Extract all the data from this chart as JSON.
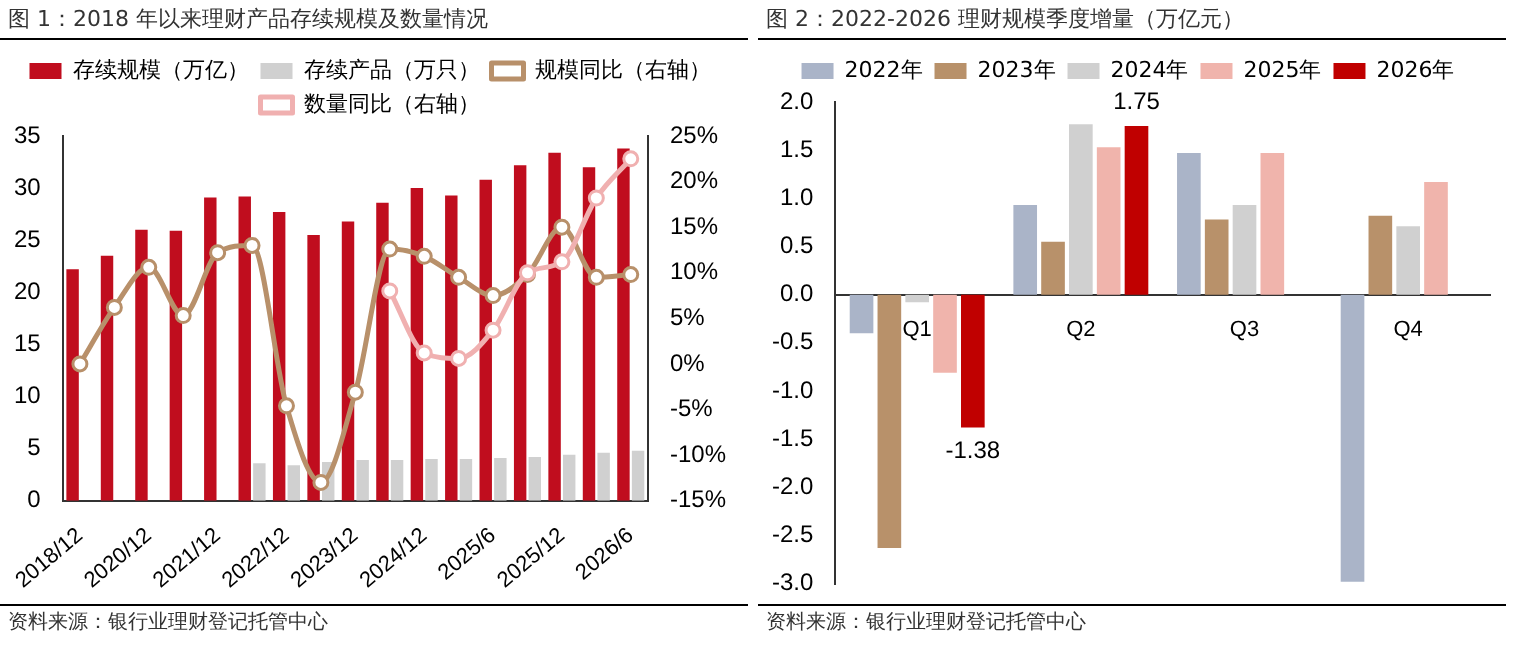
{
  "chart_data": [
    {
      "type": "bar",
      "title": "图 1：2018 年以来理财产品存续规模及数量情况",
      "categories": [
        "2018/12",
        null,
        "2020/12",
        null,
        "2021/12",
        null,
        "2022/12",
        null,
        "2023/12",
        null,
        "2024/12",
        null,
        "2025/6",
        null,
        "2025/12",
        null,
        "2026/6"
      ],
      "series": [
        {
          "name": "存续规模（万亿）",
          "type": "bar",
          "color": "#c00d1e",
          "values": [
            22.2,
            23.5,
            26.0,
            25.9,
            29.1,
            29.2,
            27.7,
            25.5,
            26.8,
            28.6,
            30.0,
            29.3,
            30.8,
            32.2,
            33.4,
            32.0,
            33.8
          ]
        },
        {
          "name": "存续产品（万只）",
          "type": "bar",
          "color": "#d0d0d0",
          "values": [
            null,
            null,
            null,
            null,
            null,
            3.6,
            3.4,
            3.7,
            3.9,
            3.9,
            4.0,
            4.0,
            4.1,
            4.2,
            4.4,
            4.6,
            4.8
          ]
        },
        {
          "name": "规模同比（右轴）",
          "type": "line",
          "axis": "y2",
          "color": "#b8906a",
          "values": [
            0,
            6.2,
            10.6,
            5.3,
            12.2,
            13.0,
            -4.6,
            -13.0,
            -3.1,
            12.6,
            11.8,
            9.5,
            7.5,
            9.8,
            15.0,
            9.5,
            9.8
          ]
        },
        {
          "name": "数量同比（右轴）",
          "type": "line",
          "axis": "y2",
          "color": "#f0b0b0",
          "values": [
            null,
            null,
            null,
            null,
            null,
            null,
            null,
            null,
            null,
            8.0,
            1.2,
            0.6,
            3.7,
            10.0,
            11.2,
            18.2,
            22.5
          ]
        }
      ],
      "ylim": [
        0,
        35
      ],
      "yticks": [
        0,
        5,
        10,
        15,
        20,
        25,
        30,
        35
      ],
      "y2lim": [
        -15,
        25
      ],
      "y2ticks": [
        {
          "value": -15,
          "label": "-15%"
        },
        {
          "value": -10,
          "label": "-10%"
        },
        {
          "value": -5,
          "label": "-5%"
        },
        {
          "value": 0,
          "label": "0%"
        },
        {
          "value": 5,
          "label": "5%"
        },
        {
          "value": 10,
          "label": "10%"
        },
        {
          "value": 15,
          "label": "15%"
        },
        {
          "value": 20,
          "label": "20%"
        },
        {
          "value": 25,
          "label": "25%"
        }
      ],
      "legend": "top",
      "marker": "circle",
      "line_style": "solid",
      "annotations": [
        "资料来源：银行业理财登记托管中心"
      ]
    },
    {
      "type": "bar",
      "title": "图 2：2022-2026 理财规模季度增量（万亿元）",
      "categories": [
        "Q1",
        "Q2",
        "Q3",
        "Q4"
      ],
      "series": [
        {
          "name": "2022年",
          "color": "#aab4c8",
          "values": [
            -0.4,
            0.93,
            1.47,
            -2.98
          ]
        },
        {
          "name": "2023年",
          "color": "#b8916a",
          "values": [
            -2.63,
            0.55,
            0.78,
            0.82
          ]
        },
        {
          "name": "2024年",
          "color": "#d0d0d0",
          "values": [
            -0.08,
            1.77,
            0.93,
            0.71
          ]
        },
        {
          "name": "2025年",
          "color": "#f0b4ac",
          "values": [
            -0.81,
            1.53,
            1.47,
            1.17
          ]
        },
        {
          "name": "2026年",
          "color": "#c00000",
          "values": [
            -1.38,
            1.75,
            null,
            null
          ],
          "value_labels": [
            "-1.38",
            "1.75",
            null,
            null
          ]
        }
      ],
      "ylim": [
        -3.0,
        2.0
      ],
      "yticks": [
        {
          "value": -3,
          "label": "-3.0"
        },
        {
          "value": -2.5,
          "label": "-2.5"
        },
        {
          "value": -2,
          "label": "-2.0"
        },
        {
          "value": -1.5,
          "label": "-1.5"
        },
        {
          "value": -1,
          "label": "-1.0"
        },
        {
          "value": -0.5,
          "label": "-0.5"
        },
        {
          "value": 0,
          "label": "0.0"
        },
        {
          "value": 0.5,
          "label": "0.5"
        },
        {
          "value": 1,
          "label": "1.0"
        },
        {
          "value": 1.5,
          "label": "1.5"
        },
        {
          "value": 2,
          "label": "2.0"
        }
      ],
      "legend": "top",
      "annotations": [
        "资料来源：银行业理财登记托管中心"
      ]
    }
  ]
}
